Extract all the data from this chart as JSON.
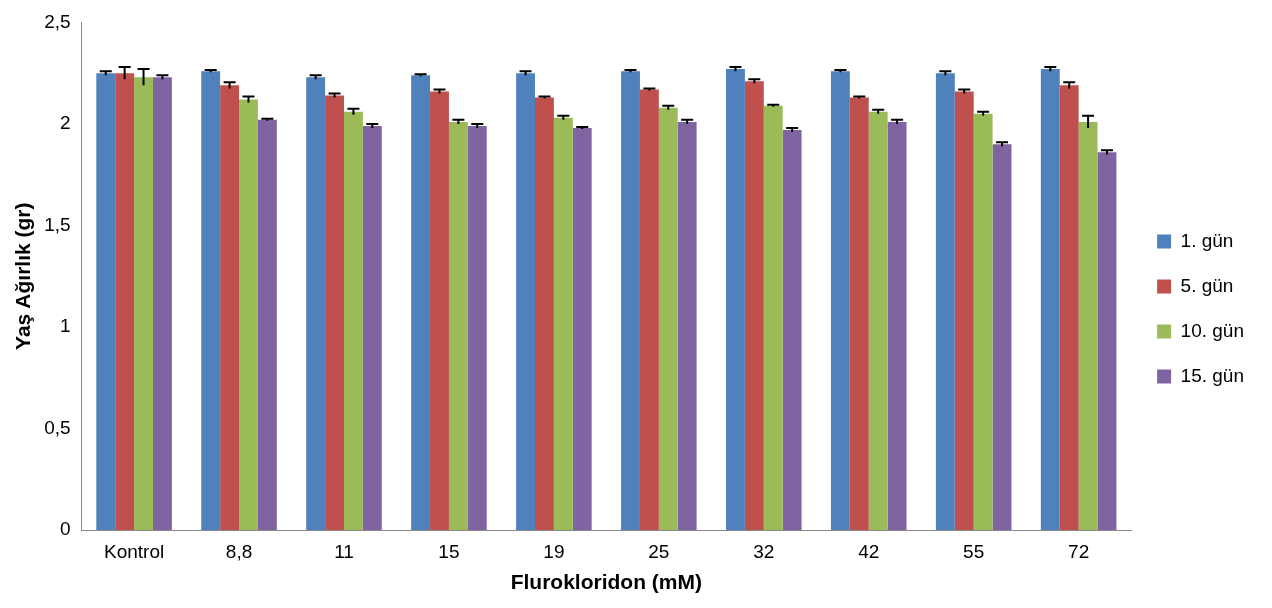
{
  "chart_data": {
    "type": "bar",
    "xlabel": "Flurokloridon (mM)",
    "ylabel": "Yaş Ağırlık (gr)",
    "categories": [
      "Kontrol",
      "8,8",
      "11",
      "15",
      "19",
      "25",
      "32",
      "42",
      "55",
      "72"
    ],
    "series": [
      {
        "name": "1. gün",
        "color": "#4f81bd",
        "values": [
          2.25,
          2.26,
          2.23,
          2.24,
          2.25,
          2.26,
          2.27,
          2.26,
          2.25,
          2.27
        ],
        "errors": [
          0.01,
          0.005,
          0.01,
          0.005,
          0.01,
          0.005,
          0.01,
          0.005,
          0.01,
          0.01
        ]
      },
      {
        "name": "5. gün",
        "color": "#c0504d",
        "values": [
          2.25,
          2.19,
          2.14,
          2.16,
          2.13,
          2.17,
          2.21,
          2.13,
          2.16,
          2.19
        ],
        "errors": [
          0.03,
          0.015,
          0.01,
          0.01,
          0.005,
          0.005,
          0.01,
          0.005,
          0.01,
          0.015
        ]
      },
      {
        "name": "10. gün",
        "color": "#9bbb59",
        "values": [
          2.23,
          2.12,
          2.06,
          2.01,
          2.03,
          2.08,
          2.09,
          2.06,
          2.05,
          2.01
        ],
        "errors": [
          0.04,
          0.015,
          0.015,
          0.01,
          0.01,
          0.01,
          0.005,
          0.01,
          0.01,
          0.03
        ]
      },
      {
        "name": "15. gün",
        "color": "#8064a2",
        "values": [
          2.23,
          2.02,
          1.99,
          1.99,
          1.98,
          2.01,
          1.97,
          2.01,
          1.9,
          1.86
        ],
        "errors": [
          0.01,
          0.005,
          0.01,
          0.01,
          0.005,
          0.01,
          0.01,
          0.01,
          0.01,
          0.01
        ]
      }
    ],
    "ylim": [
      0,
      2.5
    ],
    "yticks": [
      {
        "value": 0,
        "label": "0"
      },
      {
        "value": 0.5,
        "label": "0,5"
      },
      {
        "value": 1,
        "label": "1"
      },
      {
        "value": 1.5,
        "label": "1,5"
      },
      {
        "value": 2,
        "label": "2"
      },
      {
        "value": 2.5,
        "label": "2,5"
      }
    ],
    "grid": false,
    "legend": "right"
  }
}
